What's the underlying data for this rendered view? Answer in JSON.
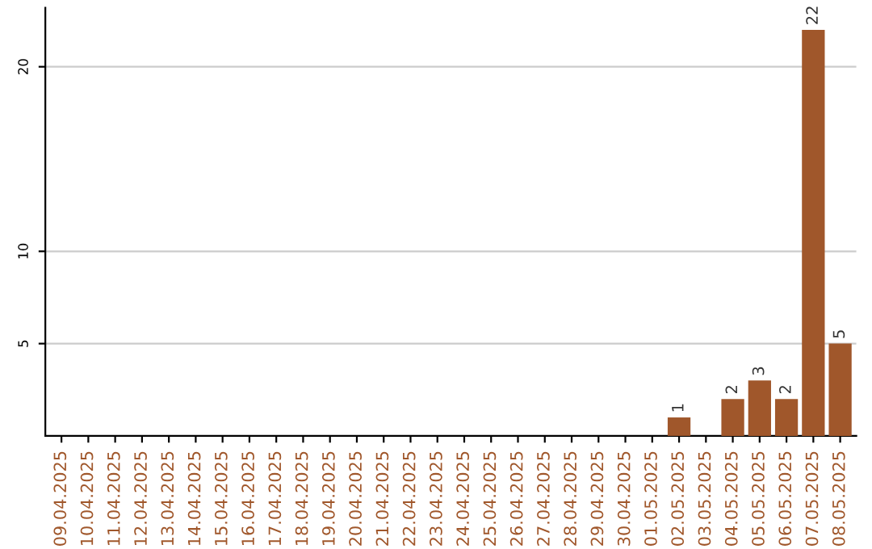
{
  "chart_data": {
    "type": "bar",
    "categories": [
      "09.04.2025",
      "10.04.2025",
      "11.04.2025",
      "12.04.2025",
      "13.04.2025",
      "14.04.2025",
      "15.04.2025",
      "16.04.2025",
      "17.04.2025",
      "18.04.2025",
      "19.04.2025",
      "20.04.2025",
      "21.04.2025",
      "22.04.2025",
      "23.04.2025",
      "24.04.2025",
      "25.04.2025",
      "26.04.2025",
      "27.04.2025",
      "28.04.2025",
      "29.04.2025",
      "30.04.2025",
      "01.05.2025",
      "02.05.2025",
      "03.05.2025",
      "04.05.2025",
      "05.05.2025",
      "06.05.2025",
      "07.05.2025",
      "08.05.2025"
    ],
    "values": [
      0,
      0,
      0,
      0,
      0,
      0,
      0,
      0,
      0,
      0,
      0,
      0,
      0,
      0,
      0,
      0,
      0,
      0,
      0,
      0,
      0,
      0,
      0,
      1,
      0,
      2,
      3,
      2,
      22,
      5
    ],
    "value_labels": [
      null,
      null,
      null,
      null,
      null,
      null,
      null,
      null,
      null,
      null,
      null,
      null,
      null,
      null,
      null,
      null,
      null,
      null,
      null,
      null,
      null,
      null,
      null,
      "1",
      null,
      "2",
      "3",
      "2",
      "22",
      "5"
    ],
    "color": "#a0572b",
    "ylim": [
      0,
      23.2
    ],
    "yticks": [
      5,
      10,
      20
    ],
    "grid": "y"
  }
}
